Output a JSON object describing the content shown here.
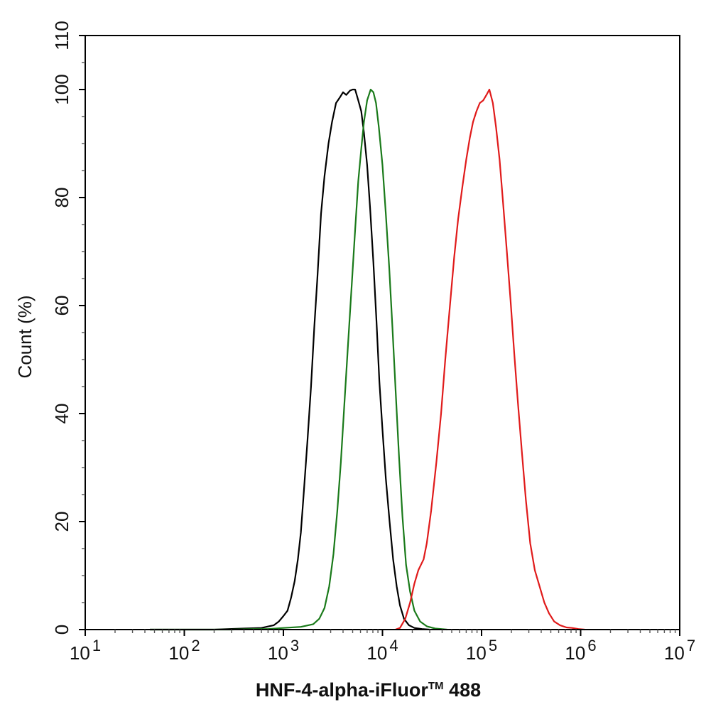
{
  "chart_data": {
    "type": "line",
    "xlabel": "HNF-4-alpha-iFluor",
    "xlabel_super": "TM",
    "xlabel_suffix": " 488",
    "ylabel": "Count  (%)",
    "x_scale": "log",
    "xlim": [
      10,
      10000000
    ],
    "ylim": [
      0,
      110
    ],
    "x_ticks": [
      {
        "value": 10,
        "base": "10",
        "exp": "1"
      },
      {
        "value": 100,
        "base": "10",
        "exp": "2"
      },
      {
        "value": 1000,
        "base": "10",
        "exp": "3"
      },
      {
        "value": 10000,
        "base": "10",
        "exp": "4"
      },
      {
        "value": 100000,
        "base": "10",
        "exp": "5"
      },
      {
        "value": 1000000,
        "base": "10",
        "exp": "6"
      },
      {
        "value": 10000000,
        "base": "10",
        "exp": "7"
      }
    ],
    "y_ticks_bottom": [
      "0",
      "20",
      "40",
      "60",
      "80",
      "100"
    ],
    "y_ticks_bottom_values": [
      0,
      20,
      40,
      60,
      80,
      100
    ],
    "y_tick_top": {
      "value": 110,
      "label": "110"
    },
    "grid": false,
    "legend": "none",
    "series": [
      {
        "color": "#000000",
        "points": [
          [
            45,
            0
          ],
          [
            200,
            0
          ],
          [
            400,
            0.2
          ],
          [
            600,
            0.3
          ],
          [
            800,
            0.8
          ],
          [
            900,
            1.5
          ],
          [
            1000,
            2.5
          ],
          [
            1100,
            3.5
          ],
          [
            1200,
            6
          ],
          [
            1300,
            9
          ],
          [
            1400,
            13
          ],
          [
            1500,
            18
          ],
          [
            1600,
            25
          ],
          [
            1750,
            35
          ],
          [
            1900,
            45
          ],
          [
            2050,
            56
          ],
          [
            2200,
            65
          ],
          [
            2400,
            77
          ],
          [
            2600,
            84
          ],
          [
            2850,
            90
          ],
          [
            3100,
            94
          ],
          [
            3400,
            97.5
          ],
          [
            3700,
            98.5
          ],
          [
            4000,
            99.5
          ],
          [
            4300,
            99
          ],
          [
            4700,
            99.8
          ],
          [
            5000,
            100
          ],
          [
            5300,
            100
          ],
          [
            5700,
            98
          ],
          [
            6100,
            96
          ],
          [
            6500,
            92
          ],
          [
            7000,
            86
          ],
          [
            7500,
            78
          ],
          [
            8100,
            68
          ],
          [
            8700,
            57
          ],
          [
            9300,
            46
          ],
          [
            10000,
            37
          ],
          [
            10800,
            28
          ],
          [
            11800,
            20
          ],
          [
            12800,
            13
          ],
          [
            13900,
            8
          ],
          [
            15000,
            4.5
          ],
          [
            16500,
            2
          ],
          [
            18500,
            0.8
          ],
          [
            21000,
            0.3
          ],
          [
            25000,
            0.1
          ],
          [
            30000,
            0
          ]
        ]
      },
      {
        "color": "#1a7a1a",
        "points": [
          [
            45,
            0
          ],
          [
            300,
            0
          ],
          [
            500,
            0.1
          ],
          [
            700,
            0.1
          ],
          [
            1000,
            0.3
          ],
          [
            1500,
            0.5
          ],
          [
            2000,
            1
          ],
          [
            2300,
            2
          ],
          [
            2600,
            4
          ],
          [
            2900,
            8
          ],
          [
            3200,
            14
          ],
          [
            3500,
            22
          ],
          [
            3800,
            31
          ],
          [
            4100,
            41
          ],
          [
            4500,
            53
          ],
          [
            4900,
            64
          ],
          [
            5300,
            74
          ],
          [
            5700,
            83
          ],
          [
            6100,
            89
          ],
          [
            6500,
            94
          ],
          [
            7000,
            98
          ],
          [
            7600,
            100
          ],
          [
            8100,
            99.5
          ],
          [
            8600,
            97.5
          ],
          [
            9200,
            93
          ],
          [
            10000,
            86
          ],
          [
            10800,
            77
          ],
          [
            11700,
            67
          ],
          [
            12600,
            56
          ],
          [
            13600,
            44
          ],
          [
            14700,
            32
          ],
          [
            15900,
            21
          ],
          [
            17300,
            12
          ],
          [
            19000,
            7
          ],
          [
            21000,
            3.5
          ],
          [
            24000,
            1.5
          ],
          [
            28000,
            0.6
          ],
          [
            34000,
            0.2
          ],
          [
            45000,
            0
          ]
        ]
      },
      {
        "color": "#e01b1b",
        "points": [
          [
            13500,
            0
          ],
          [
            15000,
            0.3
          ],
          [
            17000,
            2
          ],
          [
            19000,
            5
          ],
          [
            21000,
            8.5
          ],
          [
            23000,
            11
          ],
          [
            26000,
            13
          ],
          [
            28000,
            16
          ],
          [
            31000,
            22
          ],
          [
            35000,
            31
          ],
          [
            39000,
            40
          ],
          [
            43000,
            50
          ],
          [
            48000,
            60
          ],
          [
            53000,
            69
          ],
          [
            58000,
            76
          ],
          [
            64000,
            82
          ],
          [
            70000,
            87
          ],
          [
            76000,
            91
          ],
          [
            82000,
            94
          ],
          [
            89000,
            96
          ],
          [
            96000,
            97.5
          ],
          [
            104000,
            98
          ],
          [
            112000,
            99
          ],
          [
            120000,
            100
          ],
          [
            130000,
            97.5
          ],
          [
            140000,
            93
          ],
          [
            152000,
            87
          ],
          [
            165000,
            79
          ],
          [
            180000,
            70
          ],
          [
            196000,
            61
          ],
          [
            214000,
            51
          ],
          [
            233000,
            42
          ],
          [
            255000,
            33
          ],
          [
            280000,
            24
          ],
          [
            310000,
            16
          ],
          [
            345000,
            11
          ],
          [
            385000,
            8
          ],
          [
            430000,
            5
          ],
          [
            480000,
            3
          ],
          [
            540000,
            1.5
          ],
          [
            620000,
            0.8
          ],
          [
            720000,
            0.4
          ],
          [
            820000,
            0.3
          ],
          [
            950000,
            0.1
          ],
          [
            1100000,
            0
          ]
        ]
      }
    ]
  }
}
